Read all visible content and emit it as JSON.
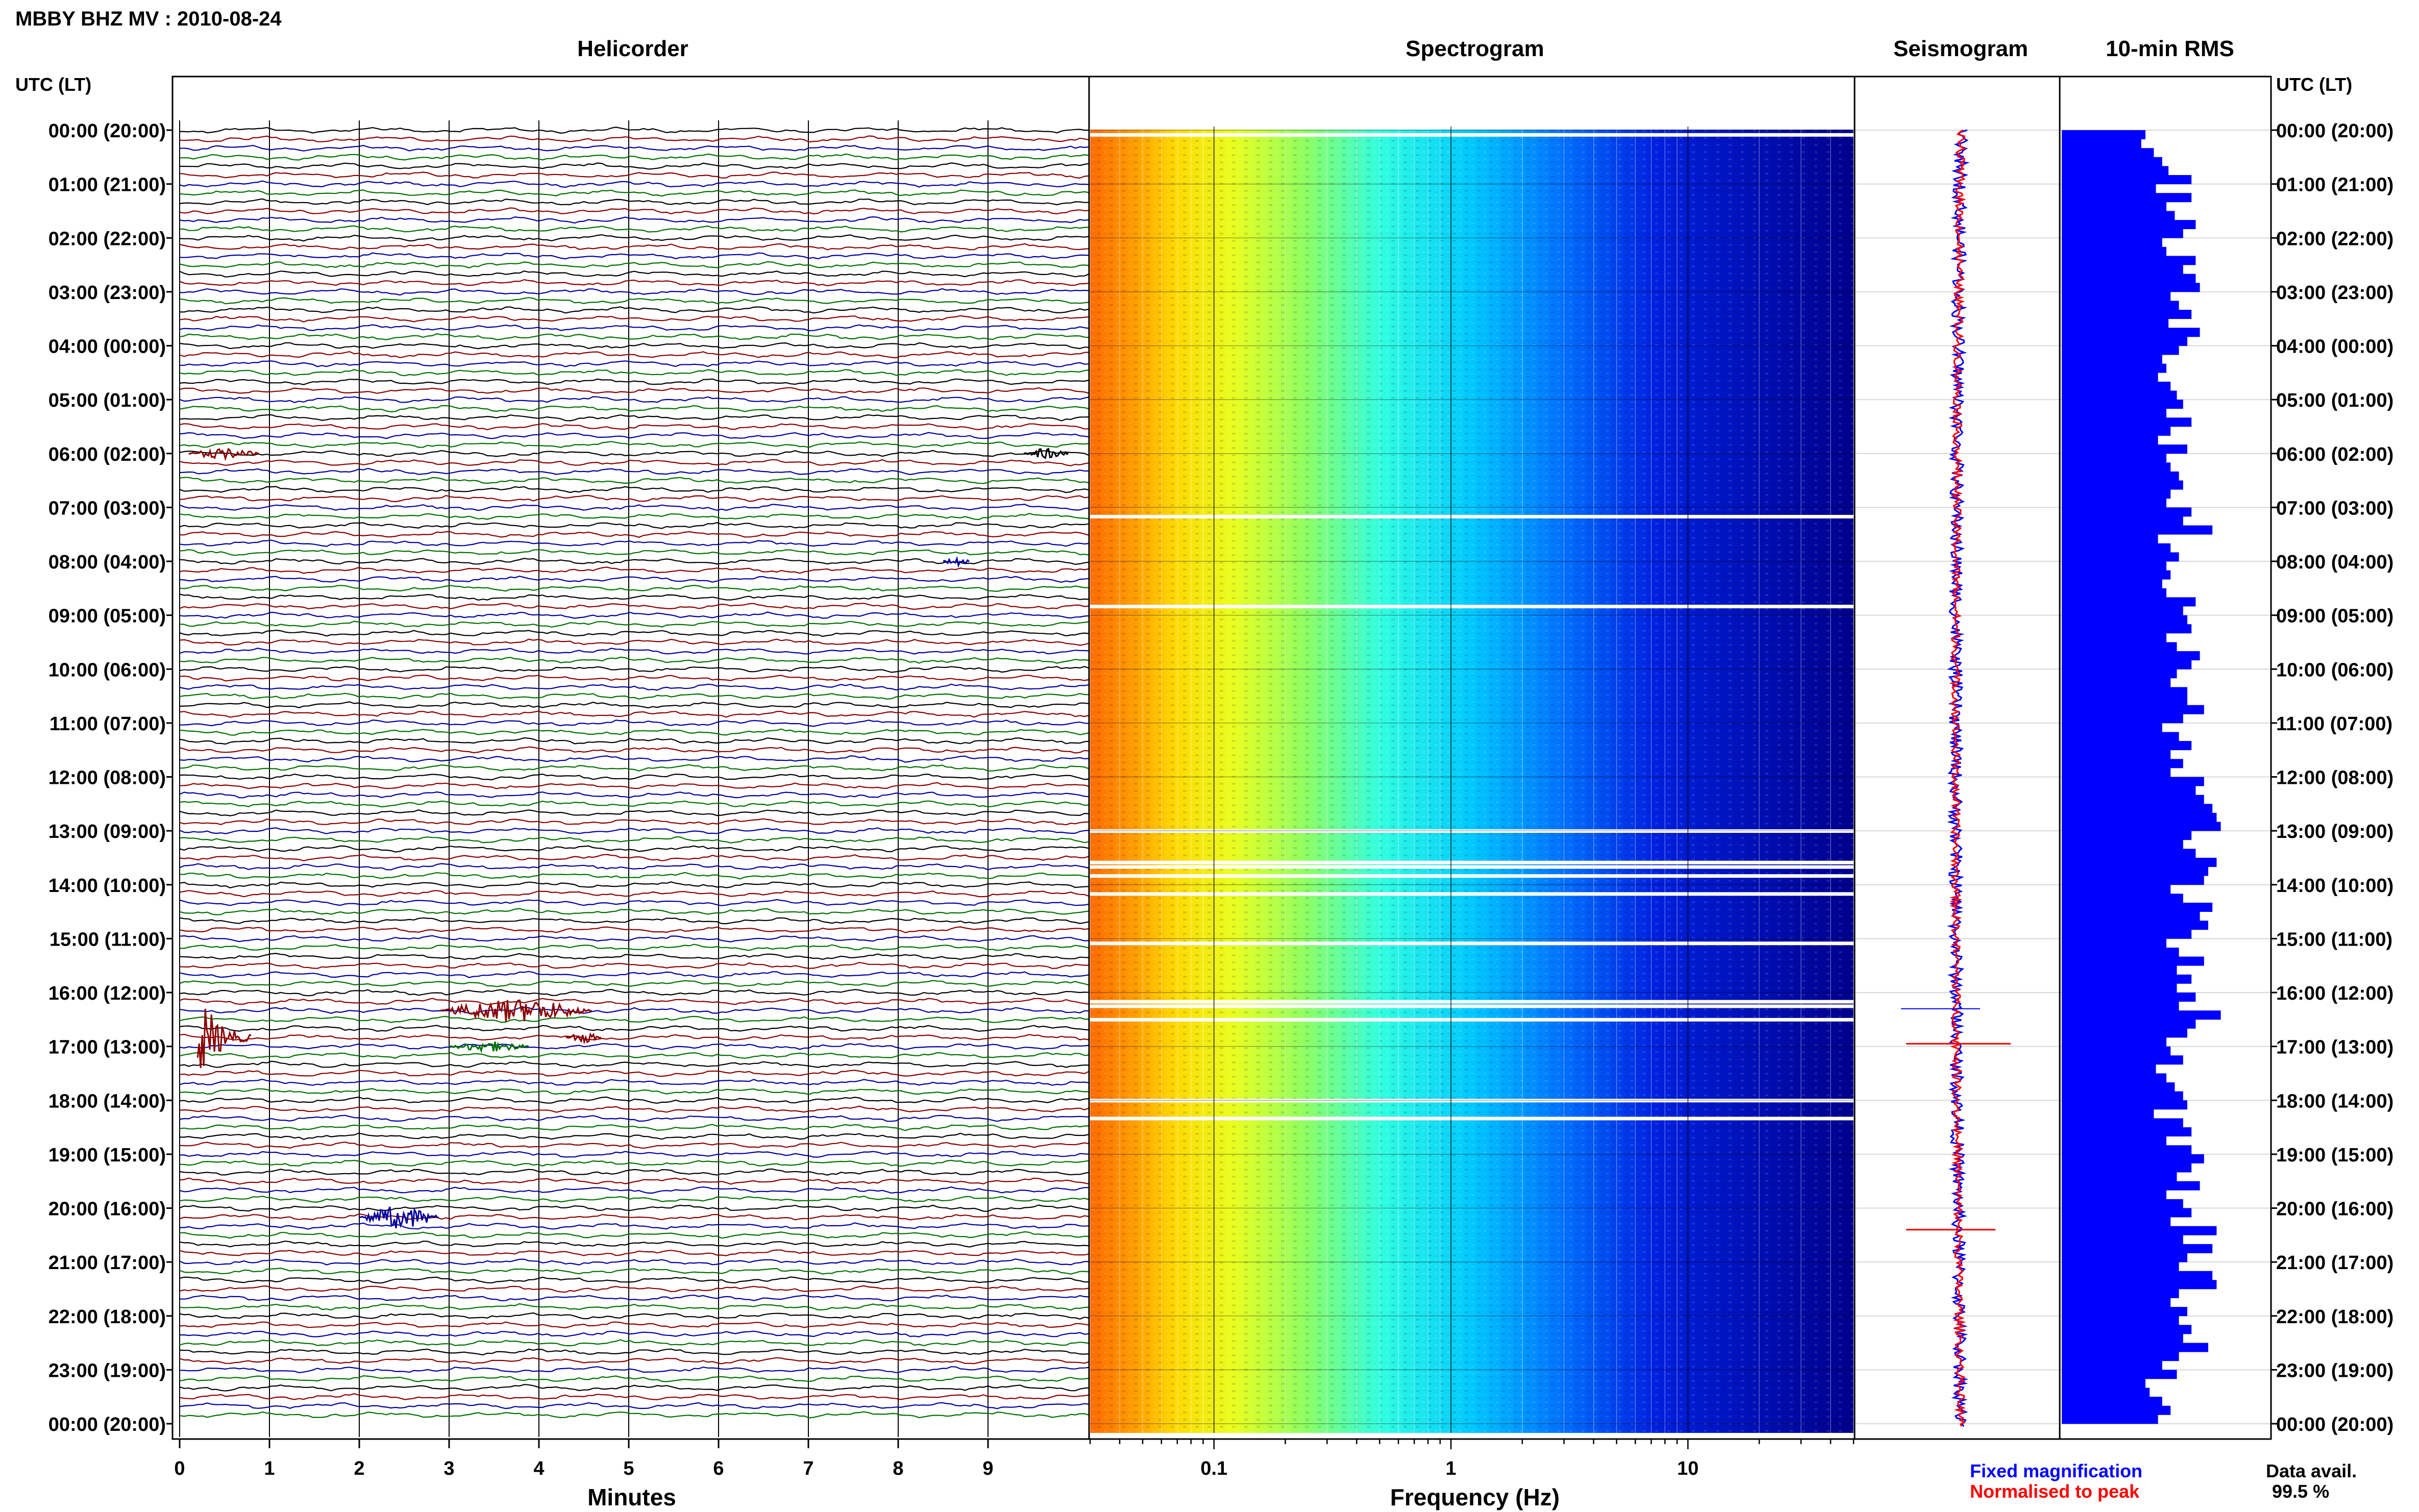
{
  "station_title": "MBBY BHZ MV : 2010-08-24",
  "panels": {
    "helicorder": "Helicorder",
    "spectrogram": "Spectrogram",
    "seismogram": "Seismogram",
    "rms": "10-min RMS"
  },
  "time_axis_label": "UTC (LT)",
  "time_labels": [
    "00:00 (20:00)",
    "01:00 (21:00)",
    "02:00 (22:00)",
    "03:00 (23:00)",
    "04:00 (00:00)",
    "05:00 (01:00)",
    "06:00 (02:00)",
    "07:00 (03:00)",
    "08:00 (04:00)",
    "09:00 (05:00)",
    "10:00 (06:00)",
    "11:00 (07:00)",
    "12:00 (08:00)",
    "13:00 (09:00)",
    "14:00 (10:00)",
    "15:00 (11:00)",
    "16:00 (12:00)",
    "17:00 (13:00)",
    "18:00 (14:00)",
    "19:00 (15:00)",
    "20:00 (16:00)",
    "21:00 (17:00)",
    "22:00 (18:00)",
    "23:00 (19:00)",
    "00:00 (20:00)"
  ],
  "helicorder_x_axis": {
    "label": "Minutes",
    "ticks": [
      "0",
      "1",
      "2",
      "3",
      "4",
      "5",
      "6",
      "7",
      "8",
      "9"
    ]
  },
  "spectrogram_x_axis": {
    "label": "Frequency (Hz)",
    "ticks": [
      "0.1",
      "1",
      "10"
    ],
    "scale": "log"
  },
  "legend": {
    "fixed": "Fixed magnification",
    "normalised": "Normalised to peak",
    "fixed_color": "#0000ff",
    "normalised_color": "#ff0000"
  },
  "data_avail": {
    "label": "Data avail.",
    "value": "99.5 %"
  },
  "colors": {
    "trace_cycle": [
      "#000000",
      "#8b0000",
      "#0000a0",
      "#007000"
    ],
    "rms_bar": "#0000ff"
  },
  "chart_data": [
    {
      "type": "line",
      "title": "Helicorder",
      "xlabel": "Minutes",
      "xlim": [
        0,
        10
      ],
      "lines_per_hour": 6,
      "hours": 24,
      "events": [
        {
          "start_utc": "16:50",
          "minute_start": 0.2,
          "duration_min": 0.6,
          "amplitude": "large",
          "color": "#8b0000"
        },
        {
          "start_utc": "16:20",
          "minute_start": 2.9,
          "duration_min": 1.7,
          "amplitude": "medium",
          "color": "#8b0000"
        },
        {
          "start_utc": "16:50",
          "minute_start": 4.3,
          "duration_min": 0.4,
          "amplitude": "small",
          "color": "#8b0000"
        },
        {
          "start_utc": "17:00",
          "minute_start": 3.0,
          "duration_min": 0.9,
          "amplitude": "small",
          "color": "#007000"
        },
        {
          "start_utc": "20:10",
          "minute_start": 2.0,
          "duration_min": 0.9,
          "amplitude": "medium",
          "color": "#0000a0"
        },
        {
          "start_utc": "08:00",
          "minute_start": 8.5,
          "duration_min": 0.3,
          "amplitude": "small",
          "color": "#0000a0"
        },
        {
          "start_utc": "06:00",
          "minute_start": 0.1,
          "duration_min": 0.8,
          "amplitude": "small",
          "color": "#8b0000"
        },
        {
          "start_utc": "06:00",
          "minute_start": 9.4,
          "duration_min": 0.5,
          "amplitude": "small",
          "color": "#000000"
        }
      ]
    },
    {
      "type": "heatmap",
      "title": "Spectrogram",
      "xlabel": "Frequency (Hz)",
      "x_scale": "log",
      "xlim": [
        0.03,
        50
      ],
      "y_range_utc": [
        "00:00",
        "24:00"
      ],
      "colormap": "jet",
      "peak_band_hz": [
        0.03,
        0.08
      ],
      "gap_rows_utc": [
        "00:05",
        "07:10",
        "08:50",
        "13:00",
        "13:35",
        "13:40",
        "13:50",
        "14:10",
        "15:05",
        "16:10",
        "16:15",
        "16:30",
        "18:00",
        "18:20"
      ]
    },
    {
      "type": "line",
      "title": "Seismogram",
      "series": [
        {
          "name": "Fixed magnification",
          "color": "#0000ff"
        },
        {
          "name": "Normalised to peak",
          "color": "#ff0000"
        }
      ]
    },
    {
      "type": "bar",
      "title": "10-min RMS",
      "orientation": "horizontal",
      "bin_minutes": 10,
      "xlim": [
        0,
        1
      ],
      "values": [
        0.4,
        0.38,
        0.44,
        0.48,
        0.51,
        0.62,
        0.45,
        0.62,
        0.5,
        0.54,
        0.64,
        0.58,
        0.48,
        0.5,
        0.64,
        0.58,
        0.64,
        0.66,
        0.52,
        0.56,
        0.62,
        0.51,
        0.66,
        0.6,
        0.56,
        0.48,
        0.5,
        0.46,
        0.52,
        0.55,
        0.58,
        0.5,
        0.62,
        0.52,
        0.46,
        0.6,
        0.5,
        0.52,
        0.56,
        0.58,
        0.52,
        0.5,
        0.62,
        0.58,
        0.72,
        0.46,
        0.52,
        0.56,
        0.5,
        0.52,
        0.48,
        0.5,
        0.64,
        0.58,
        0.6,
        0.62,
        0.5,
        0.55,
        0.66,
        0.62,
        0.55,
        0.52,
        0.6,
        0.6,
        0.68,
        0.58,
        0.48,
        0.56,
        0.62,
        0.52,
        0.58,
        0.52,
        0.68,
        0.64,
        0.68,
        0.72,
        0.74,
        0.76,
        0.62,
        0.58,
        0.64,
        0.74,
        0.7,
        0.68,
        0.52,
        0.58,
        0.72,
        0.66,
        0.7,
        0.62,
        0.5,
        0.56,
        0.68,
        0.55,
        0.62,
        0.55,
        0.64,
        0.56,
        0.76,
        0.64,
        0.6,
        0.5,
        0.52,
        0.58,
        0.45,
        0.5,
        0.54,
        0.58,
        0.6,
        0.44,
        0.58,
        0.62,
        0.5,
        0.62,
        0.68,
        0.62,
        0.55,
        0.66,
        0.5,
        0.58,
        0.62,
        0.52,
        0.74,
        0.58,
        0.72,
        0.6,
        0.56,
        0.72,
        0.74,
        0.56,
        0.52,
        0.6,
        0.56,
        0.62,
        0.58,
        0.7,
        0.56,
        0.48,
        0.55,
        0.4,
        0.42,
        0.48,
        0.52,
        0.46
      ]
    }
  ]
}
